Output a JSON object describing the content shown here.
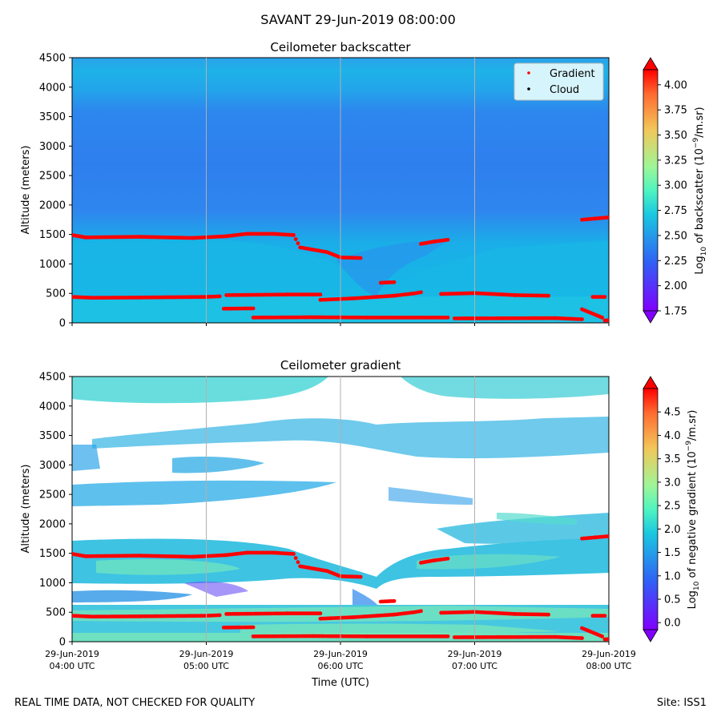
{
  "title": "SAVANT 29-Jun-2019 08:00:00",
  "footer": {
    "left": "REAL TIME DATA, NOT CHECKED FOR QUALITY",
    "right": "Site: ISS1"
  },
  "chart_data": [
    {
      "type": "heatmap",
      "title": "Ceilometer backscatter",
      "ylabel": "Altitude (meters)",
      "xlabel": "",
      "ylim": [
        0,
        4500
      ],
      "xlim": [
        "29-Jun-2019 04:00 UTC",
        "29-Jun-2019 08:00 UTC"
      ],
      "yticks": [
        "0",
        "500",
        "1000",
        "1500",
        "2000",
        "2500",
        "3000",
        "3500",
        "4000",
        "4500"
      ],
      "grid": "vertical at each hour",
      "colorbar": {
        "label": "Log10 of backscatter (10^-9/m.sr)",
        "label_main": "Log",
        "label_sub": "10",
        "label_mid": " of backscatter (10",
        "label_sup": "−9",
        "label_end": "/m.sr)",
        "range": [
          1.75,
          4.15
        ],
        "ticks": [
          "1.75",
          "2.00",
          "2.25",
          "2.50",
          "2.75",
          "3.00",
          "3.25",
          "3.50",
          "3.75",
          "4.00"
        ],
        "colormap": "rainbow",
        "extend": "both"
      },
      "legend": {
        "placement": "top-right",
        "entries": [
          {
            "label": "Gradient",
            "color": "#ff0000"
          },
          {
            "label": "Cloud",
            "color": "#000000"
          }
        ]
      },
      "field_description": "Backscatter mostly 2.2–2.5 (light blue) below 1500 m, 2.0–2.2 (blue) in the 1500–3500 m layer, a lighter band near 3800–4300 m, lighter near the surface."
    },
    {
      "type": "heatmap",
      "title": "Ceilometer gradient",
      "ylabel": "Altitude (meters)",
      "xlabel": "Time (UTC)",
      "ylim": [
        0,
        4500
      ],
      "xticks": [
        {
          "date": "29-Jun-2019",
          "time": "04:00 UTC"
        },
        {
          "date": "29-Jun-2019",
          "time": "05:00 UTC"
        },
        {
          "date": "29-Jun-2019",
          "time": "06:00 UTC"
        },
        {
          "date": "29-Jun-2019",
          "time": "07:00 UTC"
        },
        {
          "date": "29-Jun-2019",
          "time": "08:00 UTC"
        }
      ],
      "yticks": [
        "0",
        "500",
        "1000",
        "1500",
        "2000",
        "2500",
        "3000",
        "3500",
        "4000",
        "4500"
      ],
      "grid": "vertical at each hour",
      "colorbar": {
        "label": "Log10 of negative gradient (10^-9/m.sr)",
        "label_main": "Log",
        "label_sub": "10",
        "label_mid": " of negative gradient (10",
        "label_sup": "−9",
        "label_end": "/m.sr)",
        "range": [
          -0.15,
          5.0
        ],
        "ticks": [
          "0.0",
          "0.5",
          "1.0",
          "1.5",
          "2.0",
          "2.5",
          "3.0",
          "3.5",
          "4.0",
          "4.5"
        ],
        "colormap": "rainbow",
        "extend": "both"
      },
      "field_description": "Negative-gradient layers (about 1.0–2.0) near 0–500 m, 800 m, 1100–1700 m, 1800–2100 m, 2300–2700 m, 2800–3100 m, 3300–3700 m and 3900–4400 m, with white gaps elsewhere."
    }
  ],
  "gradient_points": {
    "units": "x in hours UTC, y in meters",
    "segments": [
      {
        "x": [
          4.0,
          4.15,
          4.5,
          5.0,
          5.1
        ],
        "y": [
          440,
          425,
          430,
          440,
          450
        ]
      },
      {
        "x": [
          5.15,
          5.6,
          5.85
        ],
        "y": [
          470,
          480,
          480
        ]
      },
      {
        "x": [
          5.85,
          6.1,
          6.4,
          6.55,
          6.6
        ],
        "y": [
          390,
          415,
          460,
          500,
          520
        ]
      },
      {
        "x": [
          6.75,
          7.0,
          7.3,
          7.55
        ],
        "y": [
          490,
          505,
          470,
          460
        ]
      },
      {
        "x": [
          7.88,
          7.97
        ],
        "y": [
          440,
          440
        ]
      },
      {
        "x": [
          5.13,
          5.35
        ],
        "y": [
          240,
          245
        ]
      },
      {
        "x": [
          5.35,
          5.8,
          6.2,
          6.8
        ],
        "y": [
          90,
          95,
          90,
          90
        ]
      },
      {
        "x": [
          6.85,
          7.6,
          7.8
        ],
        "y": [
          75,
          80,
          60
        ]
      },
      {
        "x": [
          7.8,
          7.95
        ],
        "y": [
          230,
          90
        ]
      },
      {
        "x": [
          7.97,
          8.0
        ],
        "y": [
          40,
          45
        ]
      },
      {
        "x": [
          4.0,
          4.1,
          4.5,
          4.9,
          5.15,
          5.3,
          5.5,
          5.65,
          5.7,
          5.9,
          6.0,
          6.15
        ],
        "y": [
          1490,
          1450,
          1460,
          1440,
          1470,
          1510,
          1510,
          1490,
          1280,
          1200,
          1110,
          1100
        ]
      },
      {
        "x": [
          6.3,
          6.4
        ],
        "y": [
          680,
          690
        ]
      },
      {
        "x": [
          6.6,
          6.7,
          6.8
        ],
        "y": [
          1340,
          1380,
          1410
        ]
      },
      {
        "x": [
          7.8,
          7.9,
          8.0
        ],
        "y": [
          1750,
          1770,
          1790
        ]
      }
    ]
  },
  "cloud_points": {
    "units": "x in hours UTC, y in meters",
    "x": [],
    "y": []
  }
}
